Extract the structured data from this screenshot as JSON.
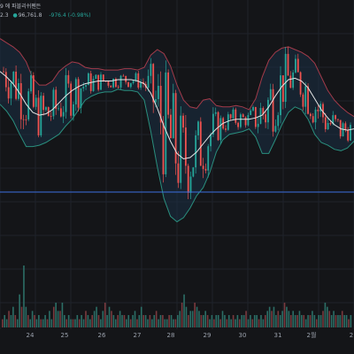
{
  "header": {
    "title_fragment": "9 에 파블리쉬펜든",
    "price_fragment": "2.3",
    "price_prefix": "●",
    "value": "96,761.8",
    "change": "-976.4 (-0.98%)"
  },
  "colors": {
    "background": "#141518",
    "grid": "#1f222a",
    "up": "#26a69a",
    "down": "#ef5350",
    "upper_band": "#a33b4a",
    "lower_band": "#2a8f7e",
    "middle_band": "#e6e6e6",
    "band_fill": "#1a3046",
    "price_line": "#3b6fe0",
    "volume_up": "#2c6e66",
    "volume_down": "#7a3a3e",
    "axis_text": "#9aa0ab"
  },
  "chart_data": {
    "type": "candlestick",
    "indicators": [
      "bollinger-bands",
      "volume"
    ],
    "x_tick_labels": [
      "24",
      "25",
      "26",
      "27",
      "28",
      "29",
      "30",
      "31",
      "2월",
      "2"
    ],
    "horizontal_price_line": true,
    "grid": true,
    "middle_band": [
      102.2,
      101.8,
      101.3,
      100.6,
      99.8,
      99.2,
      99.0,
      99.1,
      99.4,
      99.9,
      100.4,
      100.8,
      101.1,
      101.3,
      101.4,
      101.5,
      101.5,
      101.5,
      101.6,
      101.6,
      101.6,
      101.5,
      101.3,
      100.6,
      99.5,
      98.2,
      97.1,
      96.2,
      95.8,
      95.9,
      96.3,
      96.9,
      97.5,
      98.0,
      98.4,
      98.6,
      98.7,
      98.7,
      98.7,
      98.8,
      99.0,
      99.6,
      100.4,
      101.1,
      101.6,
      101.7,
      101.5,
      101.0,
      100.2,
      99.4,
      98.8,
      98.3,
      98.0,
      97.9,
      98.0
    ],
    "upper_band": [
      104.6,
      104.3,
      104.0,
      103.6,
      102.9,
      101.7,
      101.2,
      101.2,
      101.5,
      102.2,
      102.6,
      102.9,
      102.8,
      102.5,
      102.4,
      102.4,
      102.3,
      102.3,
      102.3,
      102.4,
      102.4,
      102.3,
      102.5,
      103.4,
      103.8,
      103.5,
      102.6,
      101.2,
      100.1,
      99.6,
      99.5,
      100.1,
      100.2,
      99.7,
      99.6,
      99.6,
      99.7,
      99.6,
      99.4,
      100.2,
      101.8,
      103.0,
      103.6,
      103.9,
      104.0,
      103.8,
      103.6,
      103.3,
      102.8,
      101.8,
      100.8,
      100.1,
      99.6,
      99.2,
      98.9
    ],
    "lower_band": [
      99.8,
      99.3,
      98.6,
      97.6,
      96.7,
      96.7,
      96.8,
      97.0,
      97.3,
      97.6,
      98.2,
      98.7,
      99.4,
      100.1,
      100.4,
      100.6,
      100.7,
      100.7,
      100.9,
      100.8,
      100.8,
      100.7,
      100.1,
      97.8,
      95.2,
      92.9,
      91.6,
      91.2,
      91.5,
      92.2,
      93.1,
      93.7,
      94.8,
      96.3,
      97.2,
      97.6,
      97.7,
      97.8,
      98.0,
      97.4,
      96.2,
      96.2,
      97.2,
      98.3,
      99.2,
      99.6,
      99.4,
      98.7,
      97.6,
      97.0,
      96.8,
      96.5,
      96.4,
      96.6,
      97.1
    ],
    "volume": [
      2,
      3,
      2,
      4,
      3,
      5,
      3,
      2,
      8,
      5,
      15,
      5,
      3,
      2,
      4,
      3,
      2,
      3,
      2,
      2,
      3,
      2,
      4,
      2,
      5,
      6,
      4,
      4,
      6,
      3,
      2,
      3,
      2,
      2,
      2,
      3,
      2,
      3,
      2,
      4,
      3,
      2,
      3,
      4,
      5,
      3,
      2,
      4,
      6,
      3,
      5,
      4,
      3,
      2,
      3,
      4,
      3,
      3,
      2,
      3,
      2,
      3,
      4,
      2,
      3,
      5,
      3,
      3,
      2,
      3,
      2,
      3,
      4,
      2,
      3,
      3,
      2,
      2,
      3,
      3,
      2,
      2,
      3,
      4,
      6,
      8,
      5,
      3,
      4,
      4,
      6,
      5,
      4,
      3,
      3,
      4,
      3,
      2,
      3,
      2,
      3,
      3,
      2,
      4,
      3,
      2,
      3,
      2,
      3,
      2,
      3,
      2,
      3,
      3,
      4,
      2,
      3,
      2,
      3,
      3,
      2,
      3,
      2,
      3,
      4,
      5,
      4,
      5,
      3,
      4,
      3,
      4,
      6,
      5,
      4,
      3,
      4,
      3,
      3,
      4,
      3,
      3,
      2,
      3,
      3,
      4,
      3,
      2,
      3,
      3,
      4,
      6,
      5,
      4,
      3,
      4,
      3,
      3,
      3,
      4,
      3,
      3,
      2,
      3
    ]
  }
}
